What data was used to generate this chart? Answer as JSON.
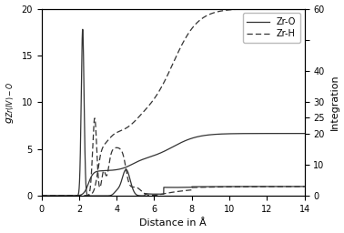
{
  "xlim": [
    0,
    14
  ],
  "ylim_left": [
    0,
    20
  ],
  "ylim_right": [
    0,
    60
  ],
  "xlabel": "Distance in Å",
  "ylabel_left": "g_{Zr(IV)-O}",
  "ylabel_right": "Integration",
  "background_color": "#ffffff",
  "line_color": "#333333",
  "figsize": [
    3.78,
    2.56
  ],
  "dpi": 100
}
